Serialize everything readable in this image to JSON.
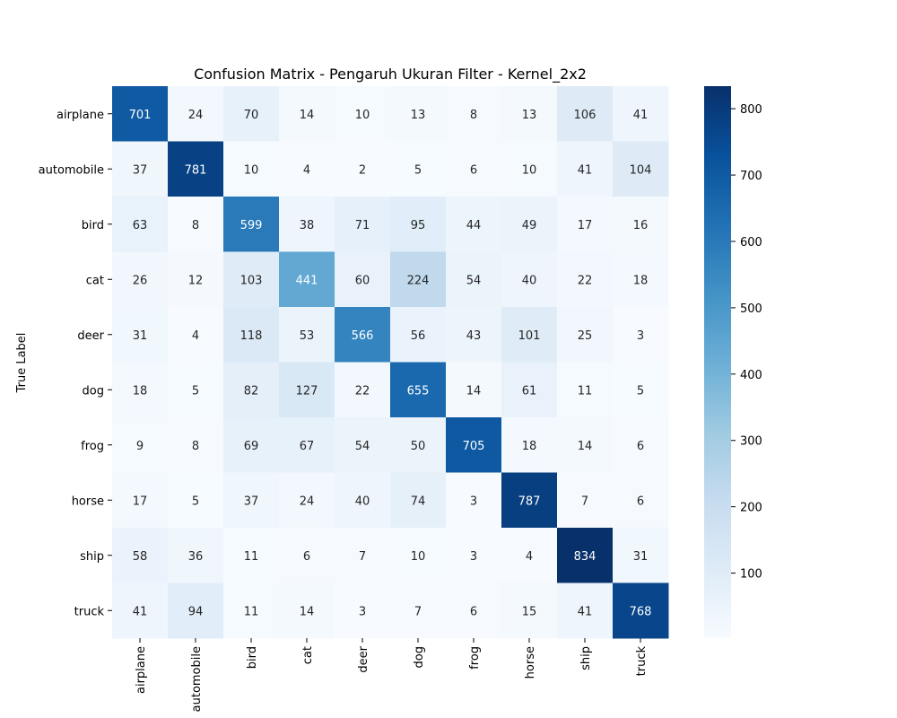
{
  "chart_data": {
    "type": "heatmap",
    "title": "Confusion Matrix - Pengaruh Ukuran Filter - Kernel_2x2",
    "ylabel": "True Label",
    "xlabel": "",
    "categories": [
      "airplane",
      "automobile",
      "bird",
      "cat",
      "deer",
      "dog",
      "frog",
      "horse",
      "ship",
      "truck"
    ],
    "matrix": [
      [
        701,
        24,
        70,
        14,
        10,
        13,
        8,
        13,
        106,
        41
      ],
      [
        37,
        781,
        10,
        4,
        2,
        5,
        6,
        10,
        41,
        104
      ],
      [
        63,
        8,
        599,
        38,
        71,
        95,
        44,
        49,
        17,
        16
      ],
      [
        26,
        12,
        103,
        441,
        60,
        224,
        54,
        40,
        22,
        18
      ],
      [
        31,
        4,
        118,
        53,
        566,
        56,
        43,
        101,
        25,
        3
      ],
      [
        18,
        5,
        82,
        127,
        22,
        655,
        14,
        61,
        11,
        5
      ],
      [
        9,
        8,
        69,
        67,
        54,
        50,
        705,
        18,
        14,
        6
      ],
      [
        17,
        5,
        37,
        24,
        40,
        74,
        3,
        787,
        7,
        6
      ],
      [
        58,
        36,
        11,
        6,
        7,
        10,
        3,
        4,
        834,
        31
      ],
      [
        41,
        94,
        11,
        14,
        3,
        7,
        6,
        15,
        41,
        768
      ]
    ],
    "colormap": "Blues",
    "color_range": [
      2,
      834
    ],
    "colorbar_ticks": [
      100,
      200,
      300,
      400,
      500,
      600,
      700,
      800
    ],
    "colors": {
      "low": "#f7fbff",
      "high": "#08306b",
      "dark_text": "#262626",
      "light_text": "#ffffff"
    }
  }
}
